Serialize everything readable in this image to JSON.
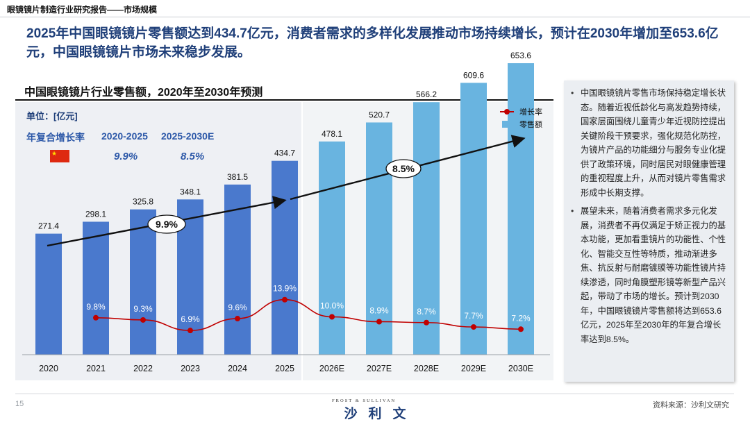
{
  "report_tag": "眼镜镜片制造行业研究报告——市场规模",
  "headline": "2025年中国眼镜镜片零售额达到434.7亿元，消费者需求的多样化发展推动市场持续增长，预计在2030年增加至653.6亿元，中国眼镜镜片市场未来稳步发展。",
  "chart_title": "中国眼镜镜片行业零售额，2020年至2030年预测",
  "unit": "单位：[亿元]",
  "cagr": {
    "label": "年复合增长率",
    "period1": "2020-2025",
    "period2": "2025-2030E",
    "value1": "9.9%",
    "value2": "8.5%",
    "trend_label1": "9.9%",
    "trend_label2": "8.5%"
  },
  "legend": {
    "growth": "增长率",
    "sales": "零售额"
  },
  "chart_data": {
    "type": "bar",
    "title": "中国眼镜镜片行业零售额，2020年至2030年预测",
    "categories": [
      "2020",
      "2021",
      "2022",
      "2023",
      "2024",
      "2025",
      "2026E",
      "2027E",
      "2028E",
      "2029E",
      "2030E"
    ],
    "series": [
      {
        "name": "零售额",
        "type": "bar",
        "values": [
          271.4,
          298.1,
          325.8,
          348.1,
          381.5,
          434.7,
          478.1,
          520.7,
          566.2,
          609.6,
          653.6
        ],
        "labels": [
          "271.4",
          "298.1",
          "325.8",
          "348.1",
          "381.5",
          "434.7",
          "478.1",
          "520.7",
          "566.2",
          "609.6",
          "653.6"
        ]
      },
      {
        "name": "增长率",
        "type": "line",
        "values": [
          null,
          9.8,
          9.3,
          6.9,
          9.6,
          13.9,
          10.0,
          8.9,
          8.7,
          7.7,
          7.2
        ],
        "labels": [
          "",
          "9.8%",
          "9.3%",
          "6.9%",
          "9.6%",
          "13.9%",
          "10.0%",
          "8.9%",
          "8.7%",
          "7.7%",
          "7.2%"
        ]
      }
    ],
    "colors": {
      "historical_bar": "#4a79cd",
      "forecast_bar": "#69b4e0",
      "growth_line": "#c00000"
    },
    "ylim": [
      0,
      700
    ],
    "growth_ylim": [
      0,
      40
    ],
    "legend_position": "top-right"
  },
  "side_panel": {
    "bullets": [
      "中国眼镜镜片零售市场保持稳定增长状态。随着近视低龄化与高发趋势持续，国家层面围绕儿童青少年近视防控提出关键阶段干预要求，强化规范化防控，为镜片产品的功能细分与服务专业化提供了政策环境，同时居民对眼健康管理的重视程度上升，从而对镜片零售需求形成中长期支撑。",
      "展望未来，随着消费者需求多元化发展，消费者不再仅满足于矫正视力的基本功能，更加看重镜片的功能性、个性化、智能交互性等特质，推动渐进多焦、抗反射与耐磨镀膜等功能性镜片持续渗透，同时角膜塑形镜等新型产品兴起，带动了市场的增长。预计到2030年，中国眼镜镜片零售额将达到653.6亿元，2025年至2030年的年复合增长率达到8.5%。"
    ]
  },
  "footer": {
    "page": "15",
    "brand_sub": "FROST & SULLIVAN",
    "brand": "沙利文",
    "source": "资料来源：沙利文研究"
  }
}
